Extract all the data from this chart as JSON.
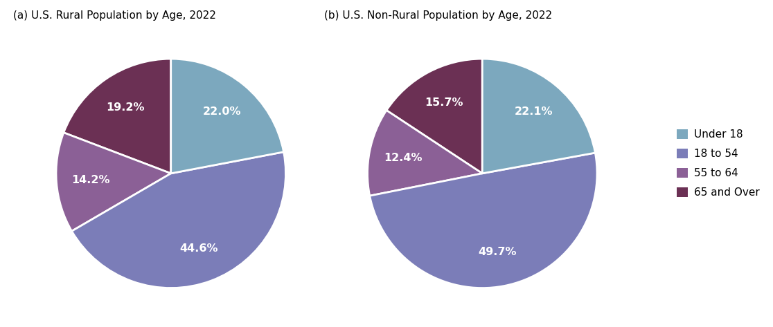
{
  "rural_title": "(a) U.S. Rural Population by Age, 2022",
  "nonrural_title": "(b) U.S. Non-Rural Population by Age, 2022",
  "labels": [
    "Under 18",
    "18 to 54",
    "55 to 64",
    "65 and Over"
  ],
  "colors": [
    "#7ca8be",
    "#7b7db8",
    "#8b6096",
    "#6b3054"
  ],
  "rural_values": [
    22.0,
    44.6,
    14.2,
    19.2
  ],
  "nonrural_values": [
    22.1,
    49.7,
    12.4,
    15.7
  ],
  "title_fontsize": 11,
  "label_fontsize": 11.5,
  "legend_fontsize": 11,
  "background_color": "#ffffff",
  "text_color": "#ffffff",
  "startangle": 90,
  "pctdistance": 0.7
}
